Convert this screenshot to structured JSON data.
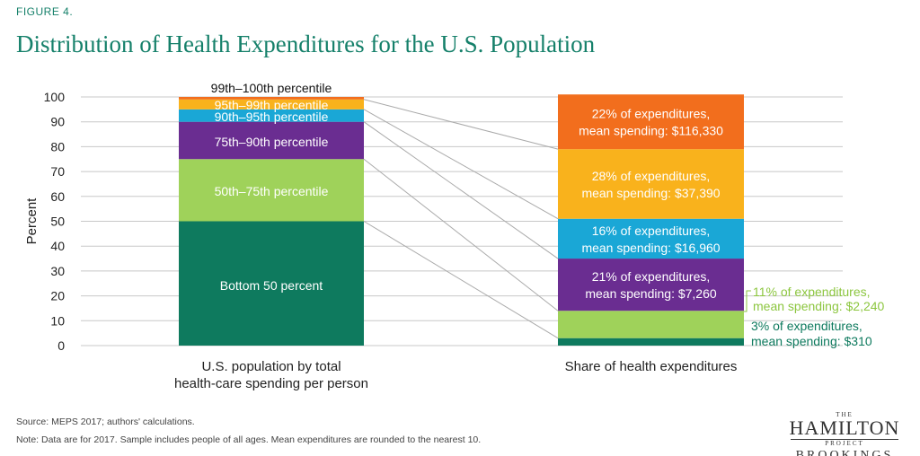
{
  "figure_label": "FIGURE 4.",
  "title": "Distribution of Health Expenditures for the U.S. Population",
  "chart_data": {
    "type": "bar",
    "stacked": true,
    "ylabel": "Percent",
    "ylim": [
      0,
      100
    ],
    "yticks": [
      0,
      10,
      20,
      30,
      40,
      50,
      60,
      70,
      80,
      90,
      100
    ],
    "grid": true,
    "categories": [
      "U.S. population by total\nhealth-care spending per person",
      "Share of health expenditures"
    ],
    "category_labels": [
      [
        "U.S. population by total",
        "health-care spending per person"
      ],
      [
        "Share of health expenditures"
      ]
    ],
    "segments": [
      {
        "group": "Bottom 50 percent",
        "population": 50,
        "expenditure_share": 3,
        "mean_spending": "$310",
        "color": "#0e7a5e",
        "pop_label": "Bottom 50 percent",
        "exp_label": [
          "3% of expenditures,",
          "mean spending: $310"
        ],
        "exp_label_outside": true,
        "exp_label_color": "#0e7a5e"
      },
      {
        "group": "50th–75th percentile",
        "population": 25,
        "expenditure_share": 11,
        "mean_spending": "$2,240",
        "color": "#9fd25a",
        "pop_label": "50th–75th percentile",
        "exp_label": [
          "11% of expenditures,",
          "mean spending: $2,240"
        ],
        "exp_label_outside": true,
        "exp_label_color": "#8cc63f"
      },
      {
        "group": "75th–90th percentile",
        "population": 15,
        "expenditure_share": 21,
        "mean_spending": "$7,260",
        "color": "#6a2d91",
        "pop_label": "75th–90th percentile",
        "exp_label": [
          "21% of expenditures,",
          "mean spending: $7,260"
        ],
        "exp_label_outside": false
      },
      {
        "group": "90th–95th percentile",
        "population": 5,
        "expenditure_share": 16,
        "mean_spending": "$16,960",
        "color": "#1aa7d6",
        "pop_label": "90th–95th percentile",
        "exp_label": [
          "16% of expenditures,",
          "mean spending: $16,960"
        ],
        "exp_label_outside": false
      },
      {
        "group": "95th–99th percentile",
        "population": 4,
        "expenditure_share": 28,
        "mean_spending": "$37,390",
        "color": "#f9b21c",
        "pop_label": "95th–99th percentile",
        "exp_label": [
          "28% of expenditures,",
          "mean spending: $37,390"
        ],
        "exp_label_outside": false
      },
      {
        "group": "99th–100th percentile",
        "population": 1,
        "expenditure_share": 22,
        "mean_spending": "$116,330",
        "color": "#f26e1d",
        "pop_label": "99th–100th percentile",
        "exp_label": [
          "22% of expenditures,",
          "mean spending: $116,330"
        ],
        "exp_label_outside": false
      }
    ]
  },
  "source": "Source: MEPS 2017; authors' calculations.",
  "note": "Note: Data are for 2017. Sample includes people of all ages. Mean expenditures are rounded to the nearest 10.",
  "logo": {
    "the": "THE",
    "name": "HAMILTON",
    "project": "PROJECT",
    "org": "BROOKINGS"
  }
}
